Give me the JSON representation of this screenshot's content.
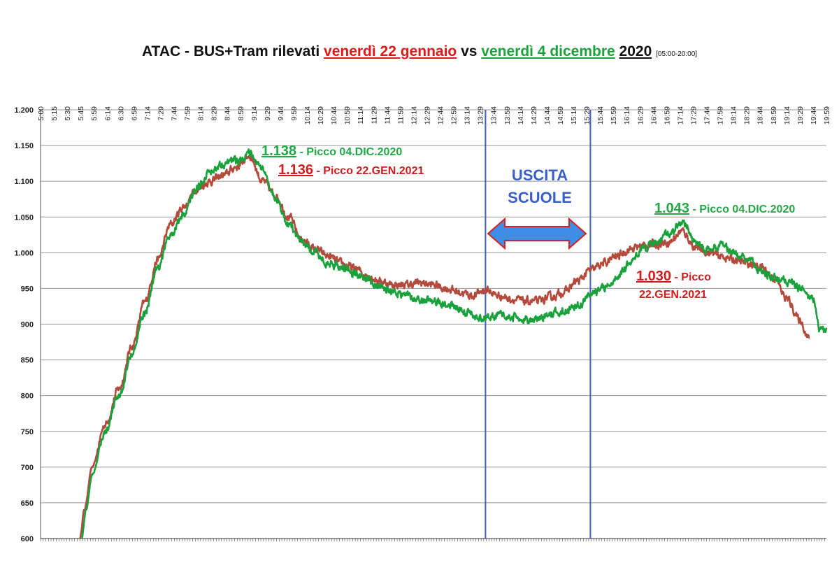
{
  "title": {
    "prefix": "ATAC",
    "dash": " - ",
    "middle": "BUS+Tram rilevati ",
    "red_part": "venerdì 22 gennaio",
    "vs": " vs ",
    "green_part": "venerdì 4 dicembre",
    "year": "2020",
    "range_note": "[05:00-20:00]"
  },
  "annotations": {
    "peak_dec_morning_value": "1.138",
    "peak_dec_morning_text": " - Picco 04.DIC.2020",
    "peak_jan_morning_value": "1.136",
    "peak_jan_morning_text": " - Picco 22.GEN.2021",
    "uscita_line1": "USCITA",
    "uscita_line2": "SCUOLE",
    "peak_dec_afternoon_value": "1.043",
    "peak_dec_afternoon_text": " - Picco 04.DIC.2020",
    "peak_jan_afternoon_value": "1.030",
    "peak_jan_afternoon_text1": " - Picco",
    "peak_jan_afternoon_text2": "22.GEN.2021"
  },
  "colors": {
    "jan_line": "#b34a3c",
    "dec_line": "#19a23c",
    "marker_lines": "#3b5fc2",
    "arrow_fill": "#3d8fe6",
    "arrow_stroke": "#d82020",
    "grid": "#9a9a9a"
  },
  "chart_data": {
    "type": "line",
    "title": "ATAC - BUS+Tram rilevati venerdì 22 gennaio vs venerdì 4 dicembre 2020 [05:00-20:00]",
    "xlabel": "",
    "ylabel": "",
    "x_range": [
      "5:00",
      "19:59"
    ],
    "ylim": [
      600,
      1200
    ],
    "y_ticks": [
      "600",
      "650",
      "700",
      "750",
      "800",
      "850",
      "900",
      "950",
      "1.000",
      "1.050",
      "1.100",
      "1.150",
      "1.200"
    ],
    "x_ticks": [
      "5:00",
      "5:15",
      "5:30",
      "5:45",
      "5:59",
      "6:14",
      "6:30",
      "6:59",
      "7:14",
      "7:29",
      "7:44",
      "7:59",
      "8:14",
      "8:29",
      "8:44",
      "8:59",
      "9:14",
      "9:29",
      "9:44",
      "9:59",
      "10:14",
      "10:29",
      "10:44",
      "10:59",
      "11:14",
      "11:29",
      "11:44",
      "11:59",
      "12:14",
      "12:29",
      "12:44",
      "12:59",
      "13:14",
      "13:29",
      "13:44",
      "13:59",
      "14:14",
      "14:29",
      "14:44",
      "14:59",
      "15:14",
      "15:29",
      "15:44",
      "15:59",
      "16:14",
      "16:29",
      "16:44",
      "16:59",
      "17:14",
      "17:29",
      "17:44",
      "17:59",
      "18:14",
      "18:29",
      "18:44",
      "18:59",
      "19:14",
      "19:29",
      "19:44",
      "19:59"
    ],
    "grid": true,
    "vertical_markers": [
      "13:29",
      "15:29"
    ],
    "series": [
      {
        "name": "venerdì 22 gennaio",
        "color": "#b34a3c",
        "points": [
          [
            "5:45",
            600
          ],
          [
            "5:50",
            640
          ],
          [
            "5:59",
            700
          ],
          [
            "6:14",
            760
          ],
          [
            "6:30",
            810
          ],
          [
            "6:45",
            870
          ],
          [
            "6:59",
            930
          ],
          [
            "7:14",
            990
          ],
          [
            "7:29",
            1040
          ],
          [
            "7:44",
            1065
          ],
          [
            "7:59",
            1090
          ],
          [
            "8:14",
            1100
          ],
          [
            "8:29",
            1108
          ],
          [
            "8:44",
            1120
          ],
          [
            "8:59",
            1136
          ],
          [
            "9:14",
            1100
          ],
          [
            "9:29",
            1080
          ],
          [
            "9:44",
            1050
          ],
          [
            "9:59",
            1018
          ],
          [
            "10:14",
            1005
          ],
          [
            "10:29",
            995
          ],
          [
            "10:44",
            985
          ],
          [
            "10:59",
            978
          ],
          [
            "11:14",
            968
          ],
          [
            "11:29",
            960
          ],
          [
            "11:44",
            955
          ],
          [
            "11:59",
            955
          ],
          [
            "12:14",
            958
          ],
          [
            "12:29",
            955
          ],
          [
            "12:44",
            950
          ],
          [
            "12:59",
            945
          ],
          [
            "13:14",
            940
          ],
          [
            "13:29",
            948
          ],
          [
            "13:44",
            940
          ],
          [
            "13:59",
            935
          ],
          [
            "14:14",
            932
          ],
          [
            "14:29",
            932
          ],
          [
            "14:44",
            938
          ],
          [
            "14:59",
            945
          ],
          [
            "15:14",
            960
          ],
          [
            "15:29",
            975
          ],
          [
            "15:44",
            985
          ],
          [
            "15:59",
            995
          ],
          [
            "16:14",
            1005
          ],
          [
            "16:29",
            1010
          ],
          [
            "16:44",
            1012
          ],
          [
            "16:59",
            1015
          ],
          [
            "17:14",
            1030
          ],
          [
            "17:29",
            1008
          ],
          [
            "17:44",
            1000
          ],
          [
            "17:59",
            995
          ],
          [
            "18:14",
            990
          ],
          [
            "18:29",
            985
          ],
          [
            "18:44",
            980
          ],
          [
            "18:59",
            965
          ],
          [
            "19:14",
            935
          ],
          [
            "19:29",
            905
          ],
          [
            "19:39",
            880
          ]
        ]
      },
      {
        "name": "venerdì 4 dicembre",
        "color": "#19a23c",
        "points": [
          [
            "5:47",
            600
          ],
          [
            "5:52",
            640
          ],
          [
            "5:59",
            690
          ],
          [
            "6:14",
            750
          ],
          [
            "6:30",
            800
          ],
          [
            "6:45",
            860
          ],
          [
            "6:59",
            915
          ],
          [
            "7:14",
            980
          ],
          [
            "7:29",
            1025
          ],
          [
            "7:44",
            1055
          ],
          [
            "7:59",
            1090
          ],
          [
            "8:14",
            1115
          ],
          [
            "8:29",
            1125
          ],
          [
            "8:44",
            1130
          ],
          [
            "8:59",
            1138
          ],
          [
            "9:14",
            1115
          ],
          [
            "9:29",
            1075
          ],
          [
            "9:44",
            1040
          ],
          [
            "9:59",
            1015
          ],
          [
            "10:14",
            1000
          ],
          [
            "10:29",
            985
          ],
          [
            "10:44",
            980
          ],
          [
            "10:59",
            972
          ],
          [
            "11:14",
            962
          ],
          [
            "11:29",
            952
          ],
          [
            "11:44",
            945
          ],
          [
            "11:59",
            940
          ],
          [
            "12:14",
            935
          ],
          [
            "12:29",
            932
          ],
          [
            "12:44",
            928
          ],
          [
            "12:59",
            922
          ],
          [
            "13:14",
            912
          ],
          [
            "13:29",
            908
          ],
          [
            "13:44",
            912
          ],
          [
            "13:59",
            910
          ],
          [
            "14:14",
            905
          ],
          [
            "14:29",
            908
          ],
          [
            "14:44",
            915
          ],
          [
            "14:59",
            918
          ],
          [
            "15:14",
            925
          ],
          [
            "15:29",
            940
          ],
          [
            "15:44",
            950
          ],
          [
            "15:59",
            965
          ],
          [
            "16:14",
            985
          ],
          [
            "16:29",
            1005
          ],
          [
            "16:44",
            1015
          ],
          [
            "16:59",
            1025
          ],
          [
            "17:14",
            1043
          ],
          [
            "17:29",
            1015
          ],
          [
            "17:44",
            1005
          ],
          [
            "17:59",
            1010
          ],
          [
            "18:14",
            1000
          ],
          [
            "18:29",
            990
          ],
          [
            "18:44",
            975
          ],
          [
            "18:59",
            965
          ],
          [
            "19:14",
            960
          ],
          [
            "19:29",
            950
          ],
          [
            "19:44",
            935
          ],
          [
            "19:52",
            890
          ],
          [
            "19:59",
            895
          ]
        ]
      }
    ]
  }
}
